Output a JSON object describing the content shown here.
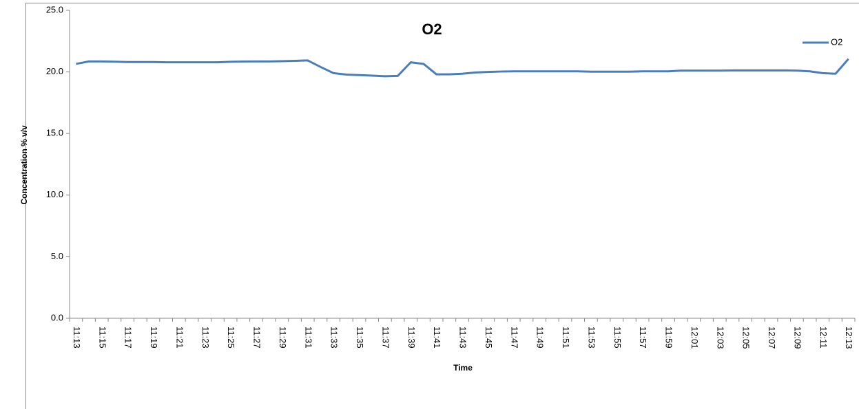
{
  "chart_data": {
    "type": "line",
    "title": "O2",
    "x_label": "Time",
    "y_label": "Concentration % v/v",
    "categories": [
      "11:13",
      null,
      "11:15",
      null,
      "11:17",
      null,
      "11:19",
      null,
      "11:21",
      null,
      "11:23",
      null,
      "11:25",
      null,
      "11:27",
      null,
      "11:29",
      null,
      "11:31",
      null,
      "11:33",
      null,
      "11:35",
      null,
      "11:37",
      null,
      "11:39",
      null,
      "11:41",
      null,
      "11:43",
      null,
      "11:45",
      null,
      "11:47",
      null,
      "11:49",
      null,
      "11:51",
      null,
      "11:53",
      null,
      "11:55",
      null,
      "11:57",
      null,
      "11:59",
      null,
      "12:01",
      null,
      "12:03",
      null,
      "12:05",
      null,
      "12:07",
      null,
      "12:09",
      null,
      "12:11",
      null,
      "12:13"
    ],
    "series": [
      {
        "name": "O2",
        "color": "#4a7ebb",
        "values": [
          20.65,
          20.85,
          20.85,
          20.83,
          20.8,
          20.8,
          20.8,
          20.78,
          20.78,
          20.78,
          20.78,
          20.78,
          20.82,
          20.84,
          20.85,
          20.85,
          20.87,
          20.9,
          20.93,
          20.4,
          19.9,
          19.78,
          19.74,
          19.7,
          19.65,
          19.68,
          20.78,
          20.65,
          19.8,
          19.8,
          19.85,
          19.95,
          20.0,
          20.03,
          20.05,
          20.05,
          20.05,
          20.05,
          20.05,
          20.05,
          20.02,
          20.02,
          20.02,
          20.02,
          20.05,
          20.05,
          20.05,
          20.1,
          20.1,
          20.1,
          20.1,
          20.12,
          20.12,
          20.12,
          20.12,
          20.12,
          20.1,
          20.05,
          19.9,
          19.85,
          21.05
        ]
      }
    ],
    "ylim": [
      0,
      25
    ],
    "yticks": [
      {
        "value": 0,
        "label": "0.0"
      },
      {
        "value": 5,
        "label": "5.0"
      },
      {
        "value": 10,
        "label": "10.0"
      },
      {
        "value": 15,
        "label": "15.0"
      },
      {
        "value": 20,
        "label": "20.0"
      },
      {
        "value": 25,
        "label": "25.0"
      }
    ],
    "legend": "right"
  }
}
